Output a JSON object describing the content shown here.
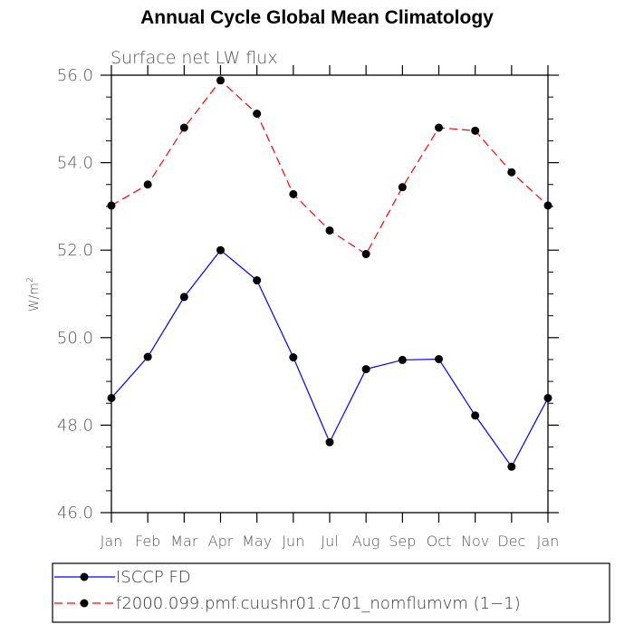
{
  "chart_data": {
    "type": "line",
    "title": "Annual Cycle Global Mean Climatology",
    "subtitle": "Surface net LW flux",
    "xlabel": "",
    "ylabel": "W/m",
    "ylabel_sup": "2",
    "categories": [
      "Jan",
      "Feb",
      "Mar",
      "Apr",
      "May",
      "Jun",
      "Jul",
      "Aug",
      "Sep",
      "Oct",
      "Nov",
      "Dec",
      "Jan"
    ],
    "ylim": [
      46.0,
      56.0
    ],
    "yticks": [
      46.0,
      48.0,
      50.0,
      52.0,
      54.0,
      56.0
    ],
    "ytick_labels": [
      "46.0",
      "48.0",
      "50.0",
      "52.0",
      "54.0",
      "56.0"
    ],
    "grid": false,
    "legend_position": "bottom",
    "series": [
      {
        "name": "ISCCP FD",
        "color": "#0000ff",
        "dash": "solid",
        "values": [
          48.62,
          49.56,
          50.93,
          52.0,
          51.31,
          49.55,
          47.61,
          49.28,
          49.49,
          49.51,
          48.22,
          47.05,
          48.62
        ]
      },
      {
        "name": "f2000.099.pmf.cuushr01.c701_nomflumvm (1−1)",
        "color": "#ff0000",
        "dash": "dashed",
        "values": [
          53.02,
          53.5,
          54.8,
          55.88,
          55.12,
          53.28,
          52.45,
          51.91,
          53.44,
          54.8,
          54.73,
          53.78,
          53.02
        ]
      }
    ]
  }
}
